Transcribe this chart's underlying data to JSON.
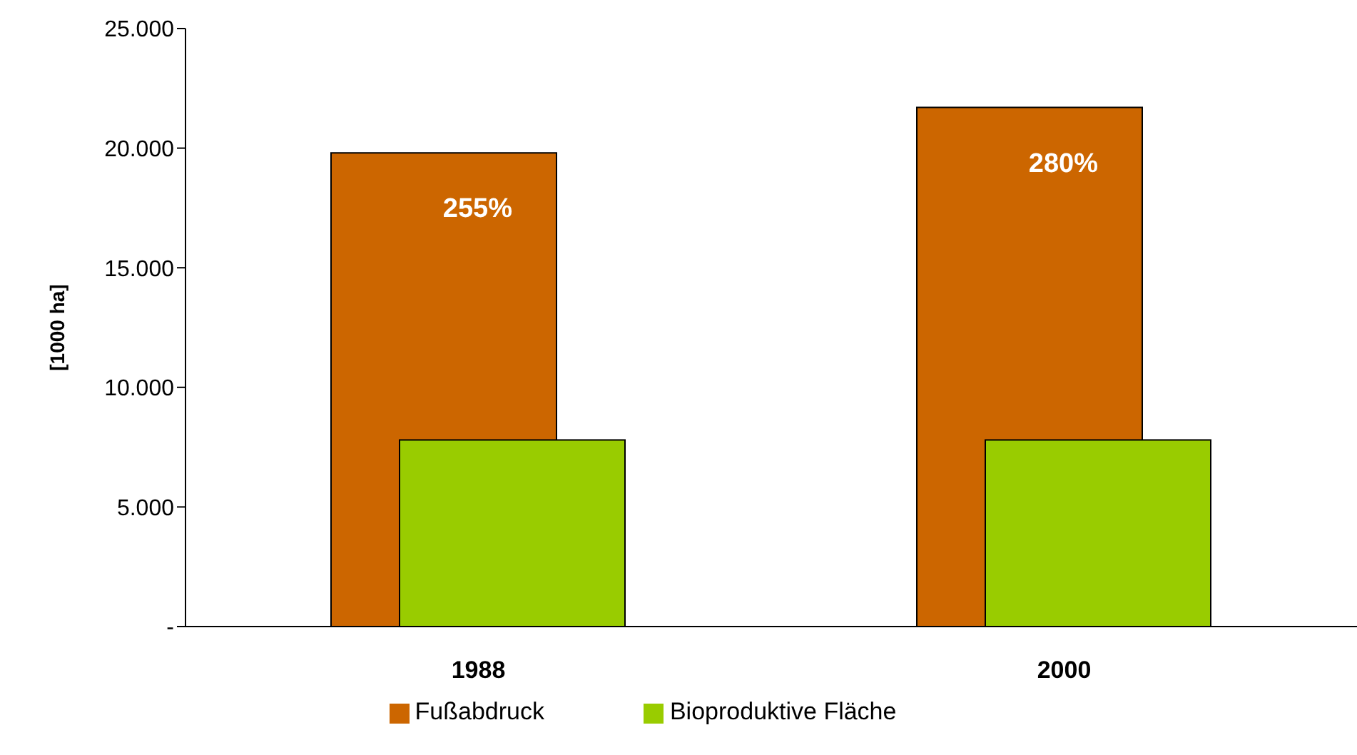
{
  "chart_data": {
    "type": "bar",
    "ylabel": "[1000 ha]",
    "categories": [
      "1988",
      "2000"
    ],
    "series": [
      {
        "name": "Fußabdruck",
        "color": "#cc6600",
        "values": [
          19800,
          21700
        ]
      },
      {
        "name": "Bioproduktive Fläche",
        "color": "#99cc00",
        "values": [
          7800,
          7800
        ]
      }
    ],
    "ylim": [
      0,
      25000
    ],
    "yticks": [
      {
        "value": 0,
        "label": "-"
      },
      {
        "value": 5000,
        "label": "5.000"
      },
      {
        "value": 10000,
        "label": "10.000"
      },
      {
        "value": 15000,
        "label": "15.000"
      },
      {
        "value": 20000,
        "label": "20.000"
      },
      {
        "value": 25000,
        "label": "25.000"
      }
    ],
    "grid": false,
    "legend": "bottom",
    "annotations": [
      "255%",
      "280%"
    ]
  }
}
